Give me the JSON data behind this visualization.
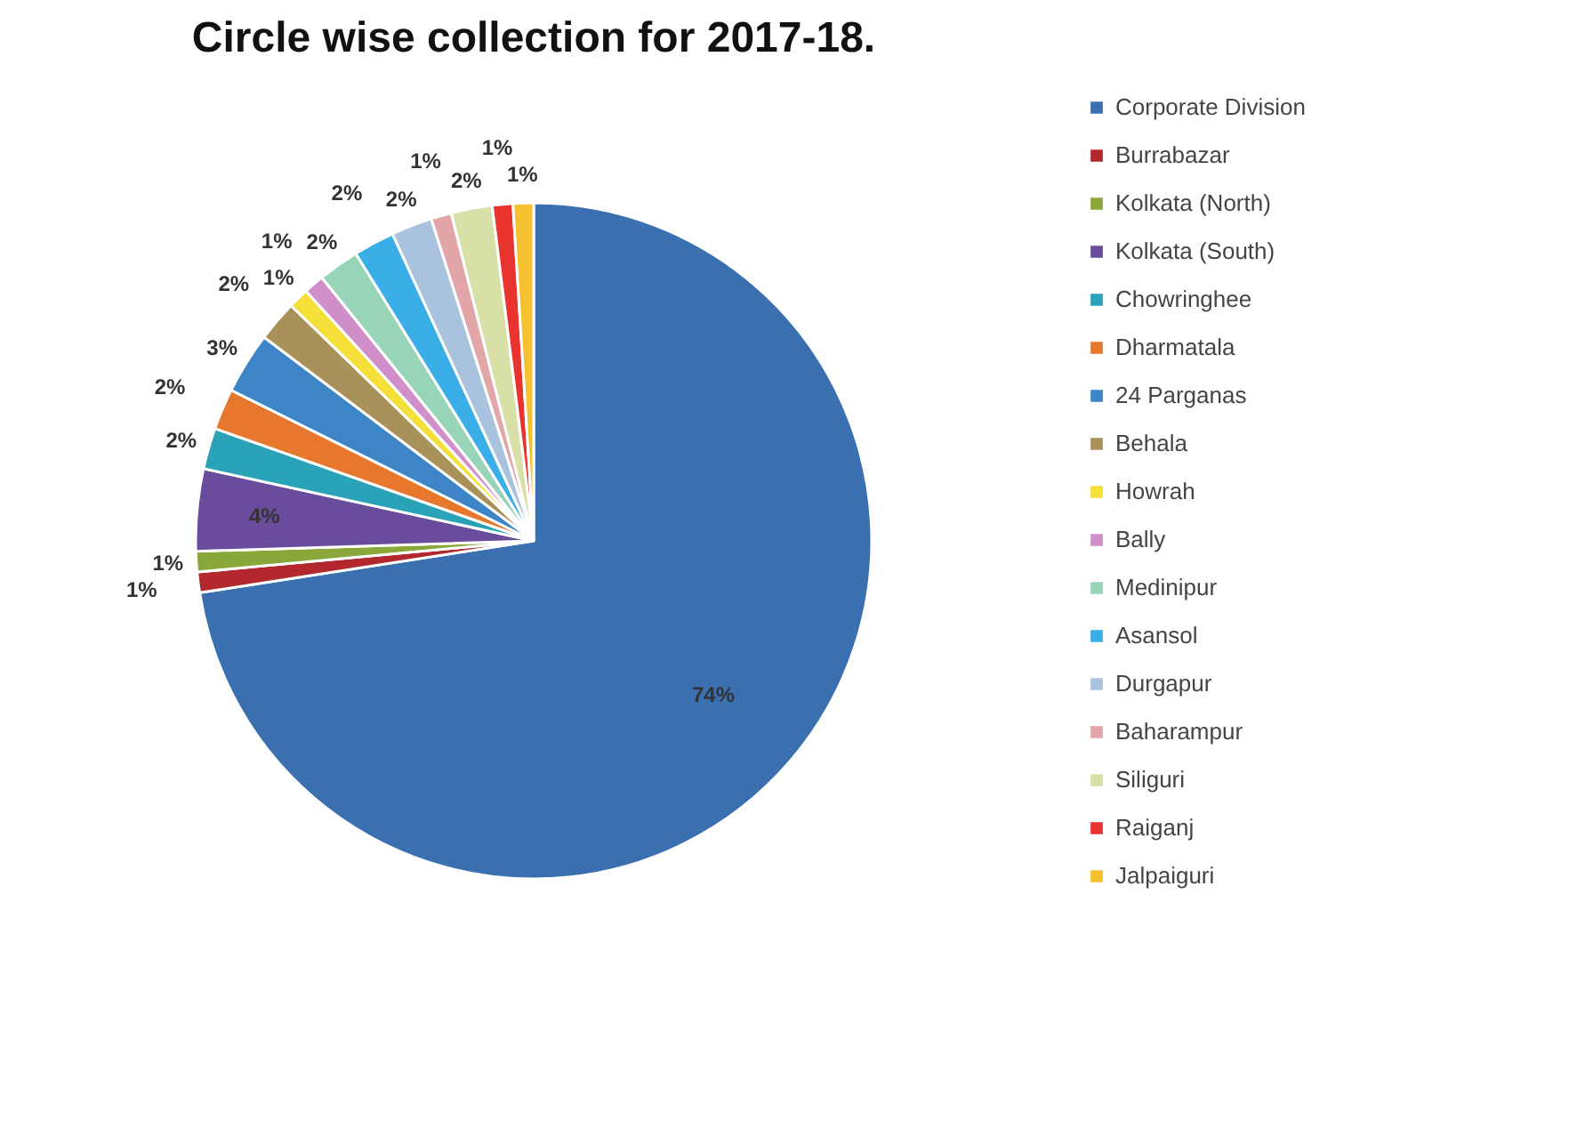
{
  "chart_data": {
    "type": "pie",
    "title": "Circle wise collection for 2017-18.",
    "categories": [
      "Corporate Division",
      "Burrabazar",
      "Kolkata (North)",
      "Kolkata (South)",
      "Chowringhee",
      "Dharmatala",
      "24 Parganas",
      "Behala",
      "Howrah",
      "Bally",
      "Medinipur",
      "Asansol",
      "Durgapur",
      "Baharampur",
      "Siliguri",
      "Raiganj",
      "Jalpaiguri"
    ],
    "values": [
      74,
      1,
      1,
      4,
      2,
      2,
      3,
      2,
      1,
      1,
      2,
      2,
      2,
      1,
      2,
      1,
      1
    ],
    "value_labels": [
      "74%",
      "1%",
      "1%",
      "4%",
      "2%",
      "2%",
      "3%",
      "2%",
      "1%",
      "1%",
      "2%",
      "2%",
      "2%",
      "1%",
      "2%",
      "1%",
      "1%"
    ],
    "colors": [
      "#3a6fb0",
      "#b3282d",
      "#8aa83a",
      "#6a4c9c",
      "#2aa3b8",
      "#e8772e",
      "#3d85c6",
      "#a8925a",
      "#f5e03a",
      "#d08fc8",
      "#98d4b8",
      "#3aaee6",
      "#a9c2de",
      "#e3a6a8",
      "#d8e0a8",
      "#e8332e",
      "#f6c12e"
    ],
    "legend": "right"
  }
}
